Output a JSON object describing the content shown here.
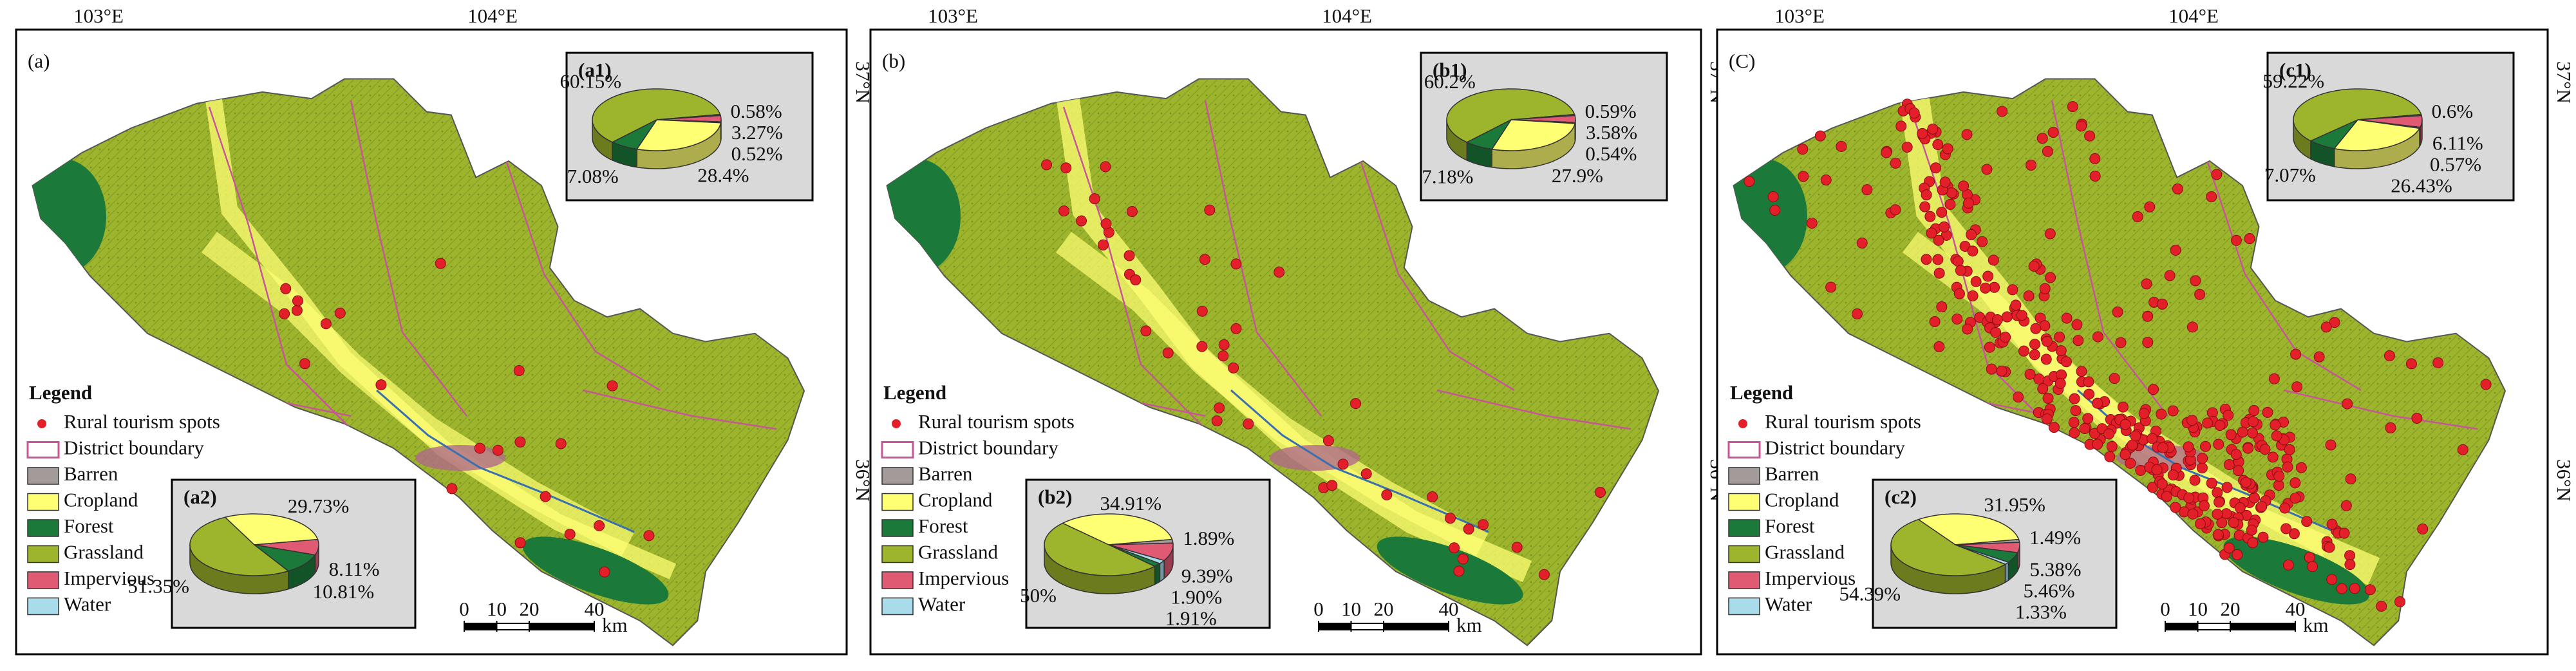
{
  "graticule": {
    "lon_labels": [
      "103°E",
      "104°E"
    ],
    "lat_labels": [
      "37°N",
      "36°N"
    ]
  },
  "legend": {
    "title": "Legend",
    "items": [
      "Rural tourism spots",
      "District boundary",
      "Barren",
      "Cropland",
      "Forest",
      "Grassland",
      "Impervious",
      "Water"
    ],
    "colors": [
      "#e3202a",
      "#c8559a",
      "#a39a9a",
      "#ffff73",
      "#1b7a3a",
      "#9db52c",
      "#e05a74",
      "#a8dcea"
    ]
  },
  "scale_bar": {
    "ticks": [
      0,
      10,
      20,
      40
    ],
    "unit": "km"
  },
  "panels": [
    {
      "label": "(a)",
      "pies": [
        {
          "type": "pie",
          "label": "(a1)",
          "values": [
            60.15,
            0.58,
            3.27,
            0.52,
            28.4,
            7.08
          ],
          "value_labels": [
            "60.15%",
            "0.58%",
            "3.27%",
            "0.52%",
            "28.4%",
            "7.08%"
          ],
          "colors": [
            "#9db52c",
            "#a39a9a",
            "#e05a74",
            "#a8dcea",
            "#ffff73",
            "#1b7a3a"
          ]
        },
        {
          "type": "pie",
          "label": "(a2)",
          "values": [
            29.73,
            8.11,
            10.81,
            51.35
          ],
          "value_labels": [
            "29.73%",
            "8.11%",
            "10.81%",
            "51.35%"
          ],
          "colors": [
            "#ffff73",
            "#e05a74",
            "#1b7a3a",
            "#9db52c"
          ]
        }
      ]
    },
    {
      "label": "(b)",
      "pies": [
        {
          "type": "pie",
          "label": "(b1)",
          "values": [
            60.2,
            0.59,
            3.58,
            0.54,
            27.9,
            7.18
          ],
          "value_labels": [
            "60.2%",
            "0.59%",
            "3.58%",
            "0.54%",
            "27.9%",
            "7.18%"
          ],
          "colors": [
            "#9db52c",
            "#a39a9a",
            "#e05a74",
            "#a8dcea",
            "#ffff73",
            "#1b7a3a"
          ]
        },
        {
          "type": "pie",
          "label": "(b2)",
          "values": [
            34.91,
            1.89,
            9.39,
            1.9,
            1.91,
            50
          ],
          "value_labels": [
            "34.91%",
            "1.89%",
            "9.39%",
            "1.90%",
            "1.91%",
            "50%"
          ],
          "colors": [
            "#ffff73",
            "#a39a9a",
            "#e05a74",
            "#a8dcea",
            "#1b7a3a",
            "#9db52c"
          ]
        }
      ]
    },
    {
      "label": "(C)",
      "pies": [
        {
          "type": "pie",
          "label": "(c1)",
          "values": [
            59.22,
            0.6,
            6.11,
            0.57,
            26.43,
            7.07
          ],
          "value_labels": [
            "59.22%",
            "0.6%",
            "6.11%",
            "0.57%",
            "26.43%",
            "7.07%"
          ],
          "colors": [
            "#9db52c",
            "#a39a9a",
            "#e05a74",
            "#a8dcea",
            "#ffff73",
            "#1b7a3a"
          ]
        },
        {
          "type": "pie",
          "label": "(c2)",
          "values": [
            31.95,
            1.49,
            5.38,
            5.46,
            1.33,
            54.39
          ],
          "value_labels": [
            "31.95%",
            "1.49%",
            "5.38%",
            "5.46%",
            "1.33%",
            "54.39%"
          ],
          "colors": [
            "#ffff73",
            "#a39a9a",
            "#e05a74",
            "#1b7a3a",
            "#a8dcea",
            "#9db52c"
          ]
        }
      ]
    }
  ]
}
